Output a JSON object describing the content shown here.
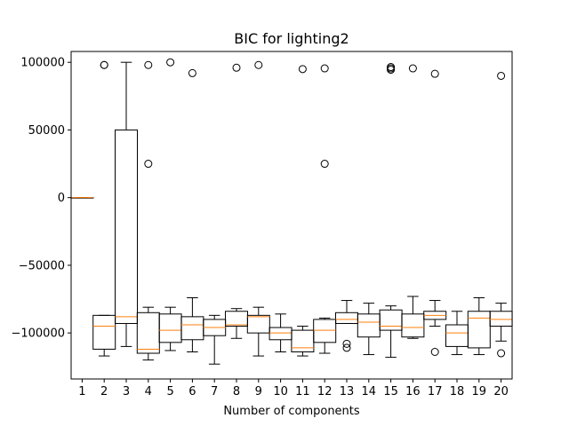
{
  "chart_data": {
    "type": "box",
    "title": "BIC for lighting2",
    "xlabel": "Number of components",
    "ylabel": "",
    "ylim": [
      -134000,
      108000
    ],
    "yticks": [
      -100000,
      -50000,
      0,
      50000,
      100000
    ],
    "ytick_labels": [
      "−100000",
      "−50000",
      "0",
      "50000",
      "100000"
    ],
    "categories": [
      "1",
      "2",
      "3",
      "4",
      "5",
      "6",
      "7",
      "8",
      "9",
      "10",
      "11",
      "12",
      "13",
      "14",
      "15",
      "16",
      "17",
      "18",
      "19",
      "20"
    ],
    "boxes": [
      {
        "q1": 0,
        "median": 0,
        "q3": 0,
        "whisker_low": 0,
        "whisker_high": 0,
        "outliers": []
      },
      {
        "q1": -112000,
        "median": -95000,
        "q3": -87000,
        "whisker_low": -117000,
        "whisker_high": -87000,
        "outliers": [
          98000,
          98000
        ]
      },
      {
        "q1": -93000,
        "median": -88000,
        "q3": 50000,
        "whisker_low": -110000,
        "whisker_high": 100000,
        "outliers": []
      },
      {
        "q1": -115000,
        "median": -112000,
        "q3": -85000,
        "whisker_low": -120000,
        "whisker_high": -81000,
        "outliers": [
          98000,
          25000
        ]
      },
      {
        "q1": -107000,
        "median": -98000,
        "q3": -86000,
        "whisker_low": -113000,
        "whisker_high": -81000,
        "outliers": [
          100000
        ]
      },
      {
        "q1": -105000,
        "median": -94000,
        "q3": -88000,
        "whisker_low": -114000,
        "whisker_high": -74000,
        "outliers": [
          92000
        ]
      },
      {
        "q1": -102000,
        "median": -96000,
        "q3": -90000,
        "whisker_low": -123000,
        "whisker_high": -87000,
        "outliers": []
      },
      {
        "q1": -95000,
        "median": -94000,
        "q3": -84000,
        "whisker_low": -104000,
        "whisker_high": -82000,
        "outliers": [
          96000
        ]
      },
      {
        "q1": -100000,
        "median": -88000,
        "q3": -87000,
        "whisker_low": -117000,
        "whisker_high": -81000,
        "outliers": [
          98000
        ]
      },
      {
        "q1": -105000,
        "median": -100000,
        "q3": -96000,
        "whisker_low": -114000,
        "whisker_high": -86000,
        "outliers": []
      },
      {
        "q1": -114000,
        "median": -111000,
        "q3": -98000,
        "whisker_low": -117000,
        "whisker_high": -95000,
        "outliers": [
          95000
        ]
      },
      {
        "q1": -107000,
        "median": -98000,
        "q3": -90000,
        "whisker_low": -115000,
        "whisker_high": -89000,
        "outliers": [
          95500,
          25000
        ]
      },
      {
        "q1": -93000,
        "median": -90000,
        "q3": -85000,
        "whisker_low": -93000,
        "whisker_high": -76000,
        "outliers": [
          -108000,
          -111000
        ]
      },
      {
        "q1": -103000,
        "median": -92000,
        "q3": -86000,
        "whisker_low": -116000,
        "whisker_high": -78000,
        "outliers": []
      },
      {
        "q1": -98000,
        "median": -95000,
        "q3": -83000,
        "whisker_low": -118000,
        "whisker_high": -80000,
        "outliers": [
          94500,
          95500,
          96500
        ]
      },
      {
        "q1": -103000,
        "median": -96000,
        "q3": -86000,
        "whisker_low": -104000,
        "whisker_high": -73000,
        "outliers": [
          95500
        ]
      },
      {
        "q1": -90000,
        "median": -87000,
        "q3": -84000,
        "whisker_low": -95000,
        "whisker_high": -76000,
        "outliers": [
          91500,
          -114000
        ]
      },
      {
        "q1": -110000,
        "median": -100000,
        "q3": -94000,
        "whisker_low": -116000,
        "whisker_high": -84000,
        "outliers": []
      },
      {
        "q1": -111000,
        "median": -89000,
        "q3": -84000,
        "whisker_low": -116000,
        "whisker_high": -74000,
        "outliers": []
      },
      {
        "q1": -95000,
        "median": -90000,
        "q3": -84000,
        "whisker_low": -106000,
        "whisker_high": -78000,
        "outliers": [
          90000,
          -115000
        ]
      }
    ],
    "colors": {
      "box": "#000000",
      "median": "#ff7f0e",
      "background": "#ffffff"
    },
    "grid": false,
    "legend": "none"
  }
}
